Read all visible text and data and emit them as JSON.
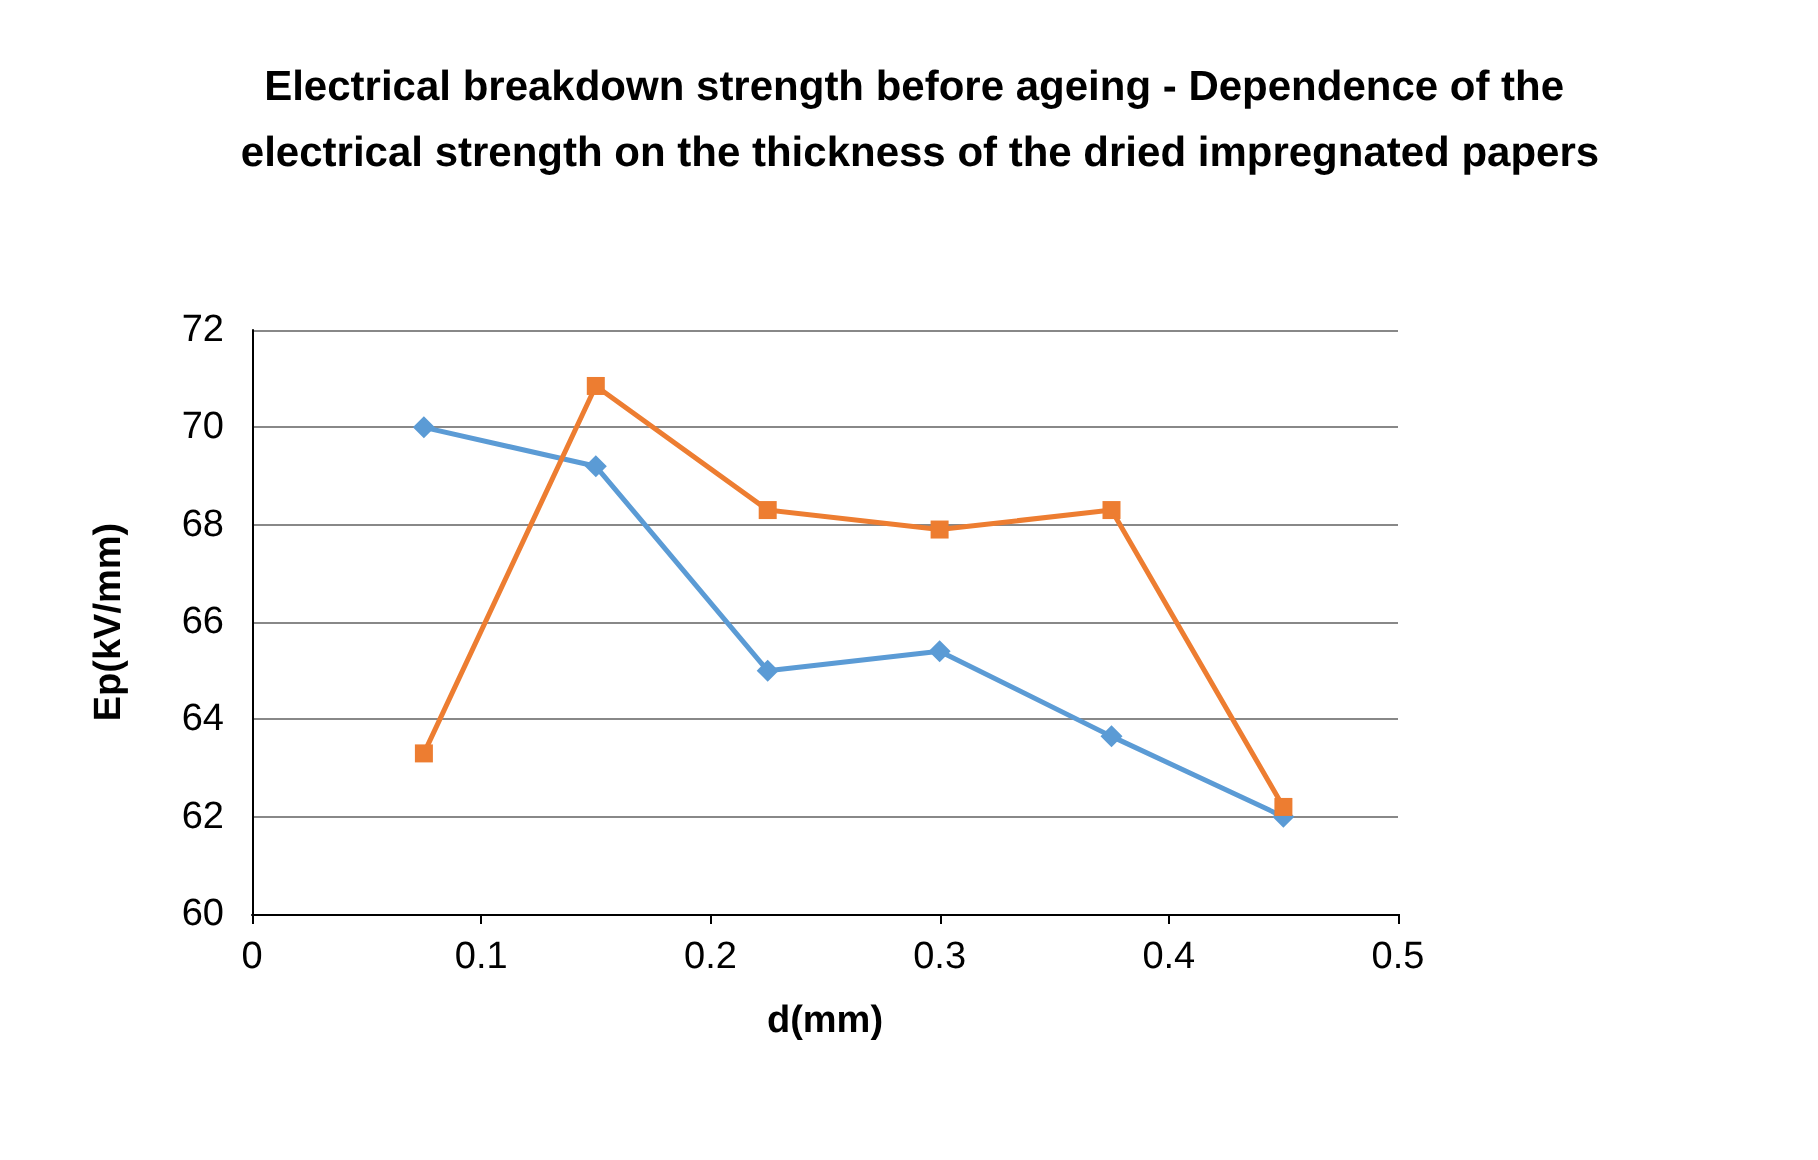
{
  "chart_data": {
    "type": "line",
    "title": "Electrical breakdown strength before ageing - Dependence of the electrical strength on the thickness of the dried impregnated papers",
    "xlabel": "d(mm)",
    "ylabel": "Ep(kV/mm)",
    "x": [
      0.075,
      0.15,
      0.225,
      0.3,
      0.375,
      0.45
    ],
    "series": [
      {
        "color": "#5b9bd5",
        "marker": "diamond",
        "values": [
          70,
          69.2,
          65,
          65.4,
          63.65,
          62
        ]
      },
      {
        "color": "#ed7d31",
        "marker": "square",
        "values": [
          63.3,
          70.85,
          68.3,
          67.9,
          68.3,
          62.2
        ]
      }
    ],
    "xlim": [
      0,
      0.5
    ],
    "xticks": [
      0,
      0.1,
      0.2,
      0.3,
      0.4,
      0.5
    ],
    "ylim": [
      60,
      72
    ],
    "yticks": [
      60,
      62,
      64,
      66,
      68,
      70,
      72
    ],
    "grid": "y",
    "line_style": "solid"
  }
}
